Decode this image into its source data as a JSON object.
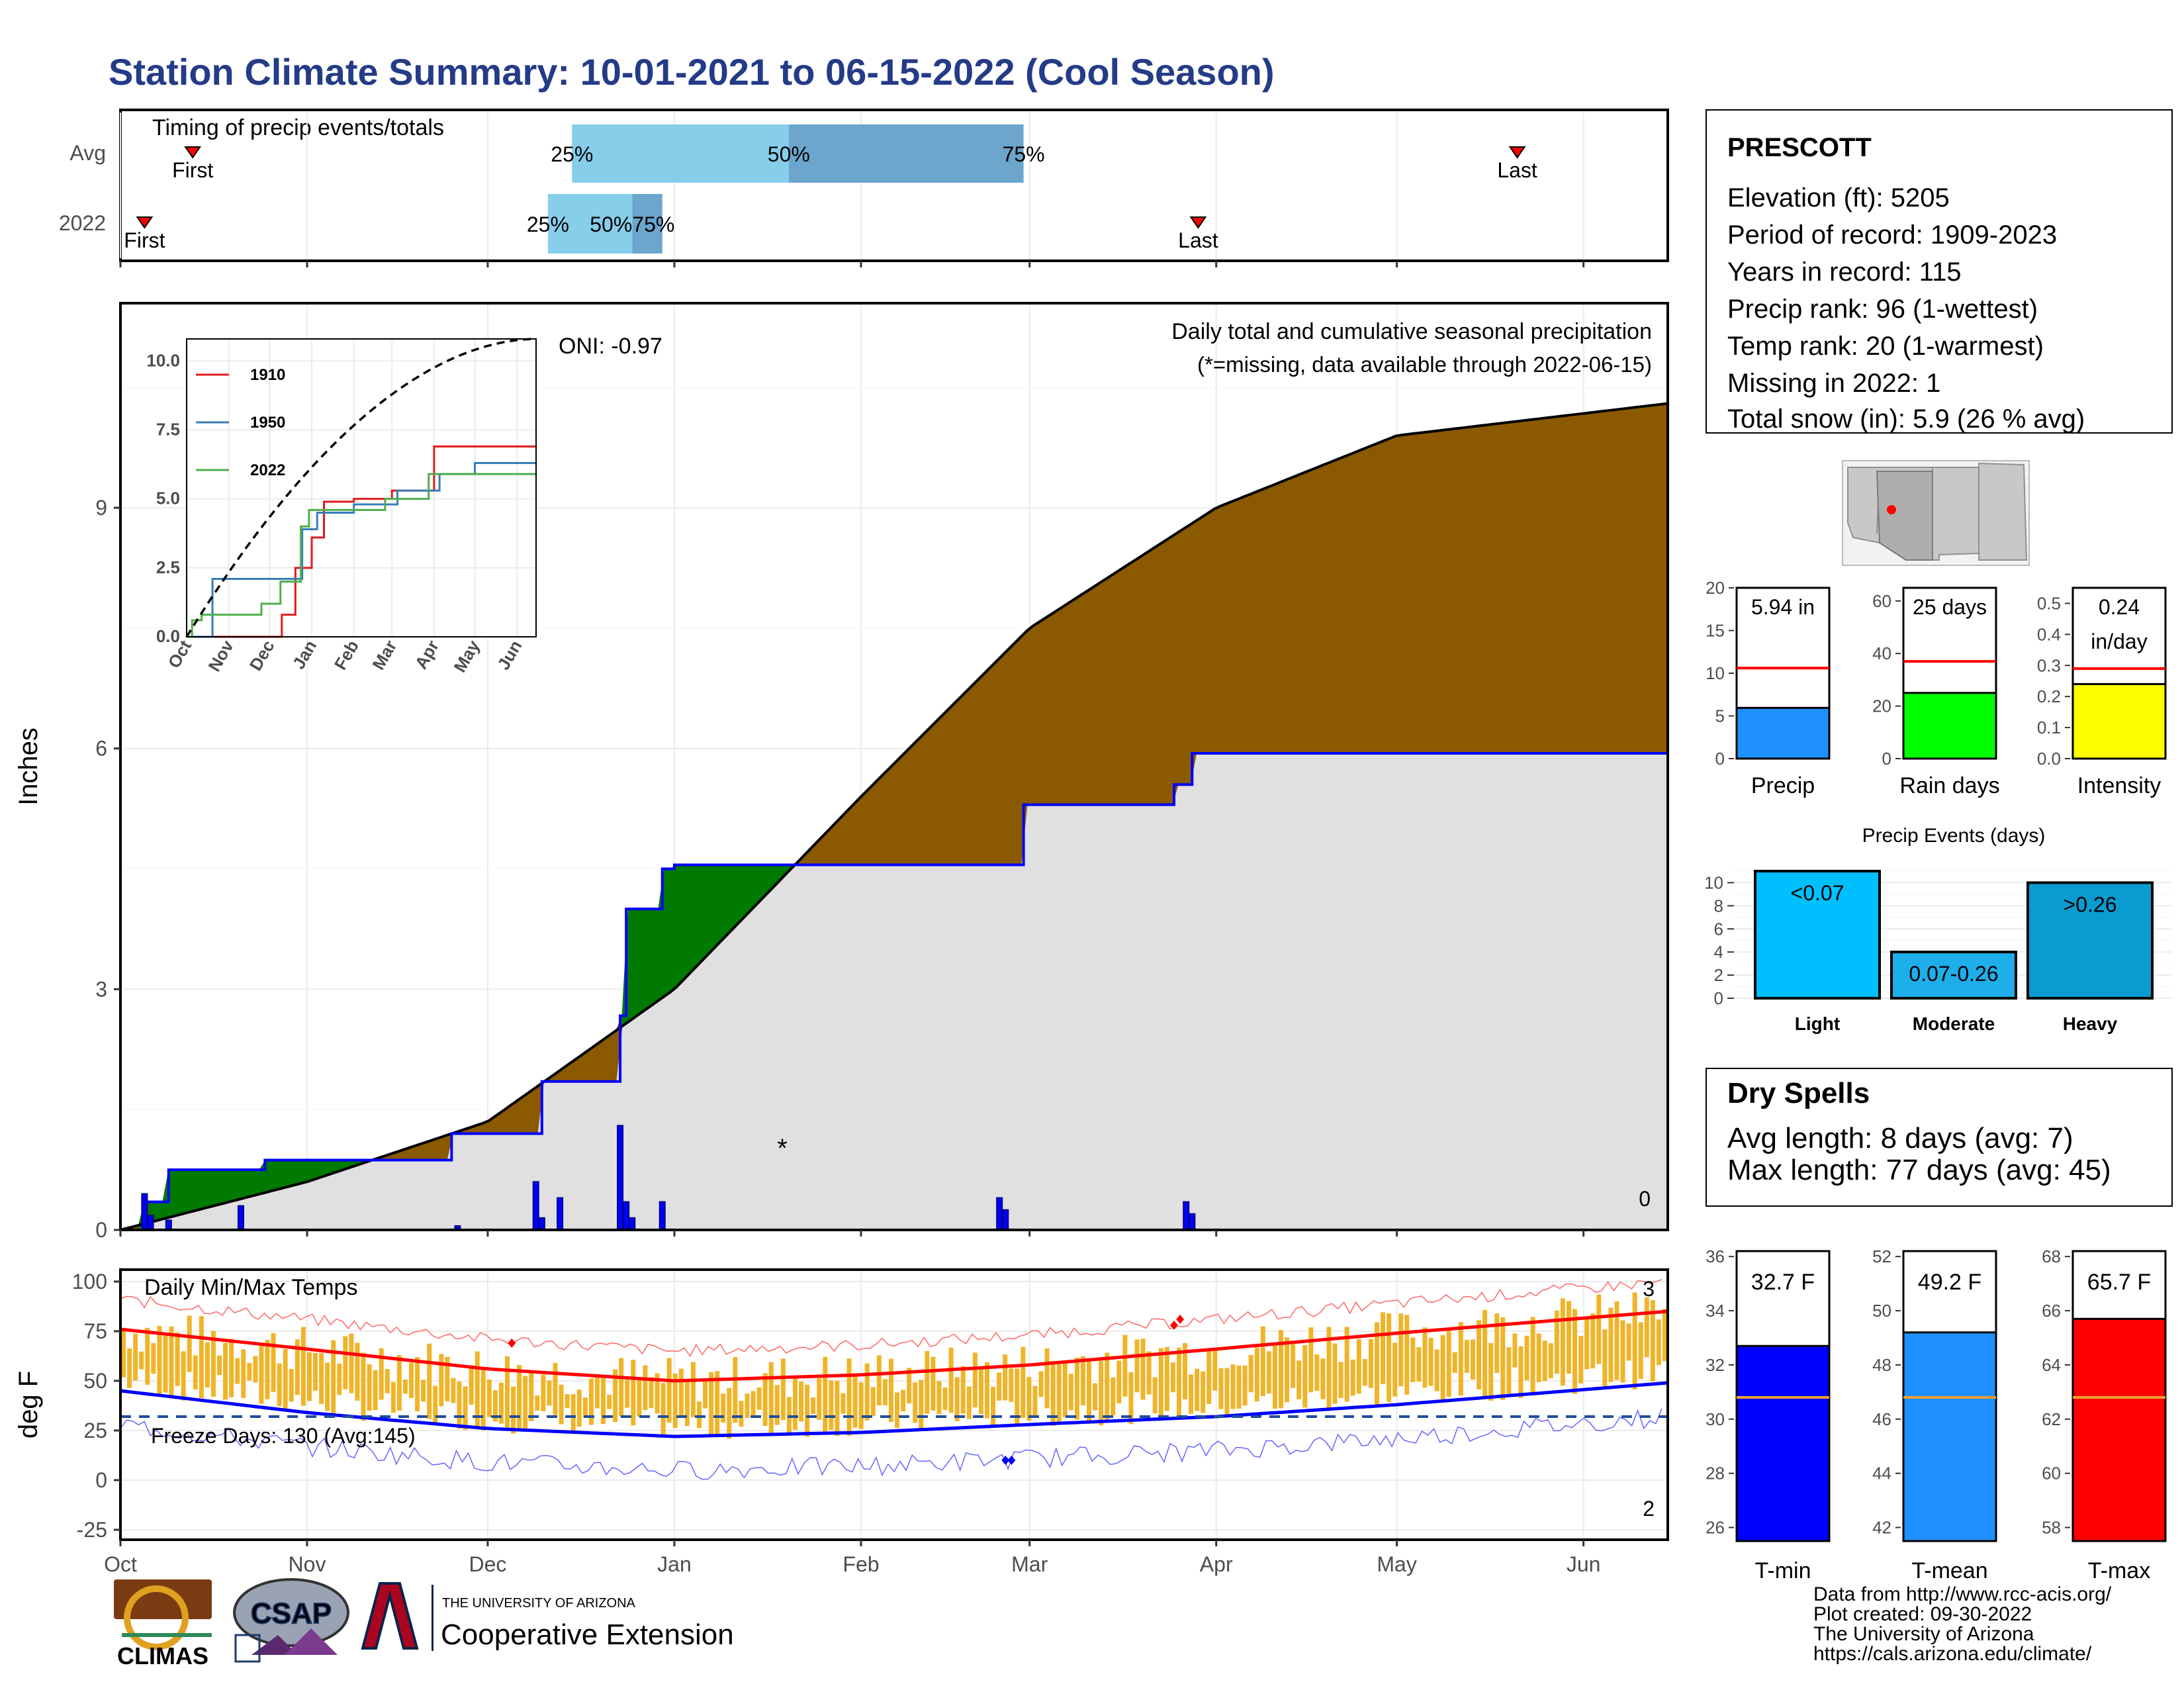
{
  "title": "Station Climate Summary: 10-01-2021 to 06-15-2022 (Cool Season)",
  "months": [
    "Oct",
    "Nov",
    "Dec",
    "Jan",
    "Feb",
    "Mar",
    "Apr",
    "May",
    "Jun"
  ],
  "timing": {
    "label": "Timing of precip events/totals",
    "rows": [
      {
        "name": "Avg",
        "first": "First",
        "last": "Last",
        "p25": "25%",
        "p50": "50%",
        "p75": "75%",
        "first_date": "2021-10-13",
        "last_date": "2022-05-21",
        "p25_date": "2021-12-15",
        "p50_date": "2022-01-20",
        "p75_date": "2022-02-28"
      },
      {
        "name": "2022",
        "first": "First",
        "last": "Last",
        "p25": "25%",
        "p50": "50%75%",
        "p75": "",
        "first_date": "2021-10-05",
        "last_date": "2022-03-29",
        "p25_date": "2021-12-11",
        "p50_date": "2021-12-25",
        "p75_date": "2021-12-30"
      }
    ]
  },
  "precip": {
    "ylabel": "Inches",
    "yticks": [
      0,
      3,
      6,
      9
    ],
    "caption1": "Daily total and cumulative seasonal precipitation",
    "caption2": "(*=missing, data available through 2022-06-15)",
    "oni": "ONI: -0.97",
    "zero_note": "0",
    "colors": {
      "below": "#8b5a00",
      "above": "#007a00",
      "obs": "#0000ff",
      "fill": "#e0e0e0"
    }
  },
  "inset": {
    "yticks": [
      "0.0",
      "2.5",
      "5.0",
      "7.5",
      "10.0"
    ],
    "xticks": [
      "Oct",
      "Nov",
      "Dec",
      "Jan",
      "Feb",
      "Mar",
      "Apr",
      "May",
      "Jun"
    ],
    "legend": [
      {
        "name": "1910",
        "color": "#e41a1c"
      },
      {
        "name": "1950",
        "color": "#377eb8"
      },
      {
        "name": "2022",
        "color": "#4daf4a"
      }
    ]
  },
  "temps": {
    "label": "Daily Min/Max Temps",
    "ylabel": "deg F",
    "yticks": [
      "-25",
      "0",
      "25",
      "50",
      "75",
      "100"
    ],
    "freeze": "Freeze Days: 130 (Avg:145)",
    "count_high": "3",
    "count_low": "2",
    "colors": {
      "bar": "#f0b428",
      "max": "#ff0000",
      "min": "#0000ff"
    }
  },
  "station": {
    "name": "PRESCOTT",
    "lines": [
      "Elevation (ft): 5205",
      "Period of record: 1909-2023",
      "Years in record: 115",
      "Precip rank: 96 (1-wettest)",
      "Temp rank: 20 (1-warmest)",
      "Missing in 2022: 1",
      "Total snow (in): 5.9 (26 % avg)"
    ]
  },
  "mini_bars": [
    {
      "label": "Precip",
      "value_text": "5.94 in",
      "value": 5.94,
      "avg": 10.6,
      "ymax": 20,
      "ticks": [
        "0",
        "5",
        "10",
        "15",
        "20"
      ],
      "color": "#1e90ff"
    },
    {
      "label": "Rain days",
      "value_text": "25 days",
      "value": 25,
      "avg": 37,
      "ymax": 65,
      "ticks": [
        "0",
        "20",
        "40",
        "60"
      ],
      "color": "#00ff00"
    },
    {
      "label": "Intensity",
      "value_text": "0.24",
      "value_text2": "in/day",
      "value": 0.24,
      "avg": 0.29,
      "ymax": 0.55,
      "ticks": [
        "0.0",
        "0.1",
        "0.2",
        "0.3",
        "0.4",
        "0.5"
      ],
      "color": "#ffff00"
    }
  ],
  "events": {
    "title": "Precip Events (days)",
    "ticks": [
      "0",
      "2",
      "4",
      "6",
      "8",
      "10"
    ],
    "bars": [
      {
        "label": "Light",
        "text": "<0.07",
        "value": 11,
        "color": "#00bfff"
      },
      {
        "label": "Moderate",
        "text": "0.07-0.26",
        "value": 4,
        "color": "#1eaeea"
      },
      {
        "label": "Heavy",
        "text": ">0.26",
        "value": 10,
        "color": "#0a9bd1"
      }
    ]
  },
  "dry": {
    "title": "Dry Spells",
    "avg": "Avg length: 8 days (avg: 7)",
    "max": "Max length: 77 days (avg: 45)"
  },
  "temp_bars": [
    {
      "label": "T-min",
      "value_text": "32.7 F",
      "value": 32.7,
      "avg": 30.8,
      "ymin": 25.5,
      "ymax": 36.2,
      "ticks": [
        "26",
        "28",
        "30",
        "32",
        "34",
        "36"
      ],
      "color": "#0000ff"
    },
    {
      "label": "T-mean",
      "value_text": "49.2 F",
      "value": 49.2,
      "avg": 46.8,
      "ymin": 41.5,
      "ymax": 52.2,
      "ticks": [
        "42",
        "44",
        "46",
        "48",
        "50",
        "52"
      ],
      "color": "#1e90ff"
    },
    {
      "label": "T-max",
      "value_text": "65.7 F",
      "value": 65.7,
      "avg": 62.8,
      "ymin": 57.5,
      "ymax": 68.2,
      "ticks": [
        "58",
        "60",
        "62",
        "64",
        "66",
        "68"
      ],
      "color": "#ff0000"
    }
  ],
  "footer": {
    "lines": [
      "Data from http://www.rcc-acis.org/",
      "Plot created: 09-30-2022",
      "The University of Arizona",
      "https://cals.arizona.edu/climate/"
    ],
    "logo1": "CLIMAS",
    "logo2": "CSAP",
    "logo3a": "THE UNIVERSITY OF ARIZONA",
    "logo3b": "Cooperative Extension"
  },
  "chart_data": {
    "type": "area",
    "title": "Daily total and cumulative seasonal precipitation",
    "ylabel": "Inches",
    "ylim": [
      0,
      11.5
    ],
    "series": [
      {
        "name": "observed cumulative",
        "x": [
          "2021-10-01",
          "2021-10-05",
          "2021-10-09",
          "2021-10-25",
          "2021-11-25",
          "2021-12-09",
          "2021-12-10",
          "2021-12-23",
          "2021-12-24",
          "2021-12-30",
          "2022-01-01",
          "2022-02-24",
          "2022-02-28",
          "2022-03-25",
          "2022-03-28",
          "2022-06-15"
        ],
        "values": [
          0.0,
          0.35,
          0.75,
          0.87,
          1.2,
          1.2,
          1.85,
          2.67,
          4.0,
          4.5,
          4.55,
          4.55,
          5.3,
          5.55,
          5.94,
          5.94
        ]
      },
      {
        "name": "average cumulative",
        "x": [
          "2021-10-01",
          "2021-11-01",
          "2021-12-01",
          "2022-01-01",
          "2022-02-01",
          "2022-03-01",
          "2022-04-01",
          "2022-05-01",
          "2022-06-15"
        ],
        "values": [
          0.0,
          0.6,
          1.35,
          3.0,
          5.4,
          7.5,
          9.0,
          9.9,
          10.3
        ]
      }
    ],
    "daily_bars": {
      "x": [
        "2021-10-05",
        "2021-10-06",
        "2021-10-09",
        "2021-10-21",
        "2021-11-26",
        "2021-12-09",
        "2021-12-10",
        "2021-12-13",
        "2021-12-23",
        "2021-12-24",
        "2021-12-25",
        "2021-12-30",
        "2022-02-24",
        "2022-02-25",
        "2022-03-27",
        "2022-03-28"
      ],
      "values": [
        0.45,
        0.18,
        0.12,
        0.3,
        0.05,
        0.6,
        0.15,
        0.4,
        1.3,
        0.35,
        0.15,
        0.35,
        0.4,
        0.25,
        0.35,
        0.2
      ]
    },
    "temps": {
      "ylim": [
        -25,
        105
      ],
      "avg_max_x": [
        "2021-10-01",
        "2021-11-01",
        "2021-12-01",
        "2022-01-01",
        "2022-02-01",
        "2022-03-01",
        "2022-04-01",
        "2022-05-01",
        "2022-06-15"
      ],
      "avg_max": [
        76,
        66,
        56,
        50,
        53,
        58,
        66,
        74,
        85
      ],
      "avg_min_x": [
        "2021-10-01",
        "2021-11-01",
        "2021-12-01",
        "2022-01-01",
        "2022-02-01",
        "2022-03-01",
        "2022-04-01",
        "2022-05-01",
        "2022-06-15"
      ],
      "avg_min": [
        45,
        34,
        26,
        22,
        24,
        28,
        32,
        38,
        49
      ],
      "freeze_line": 32
    }
  }
}
